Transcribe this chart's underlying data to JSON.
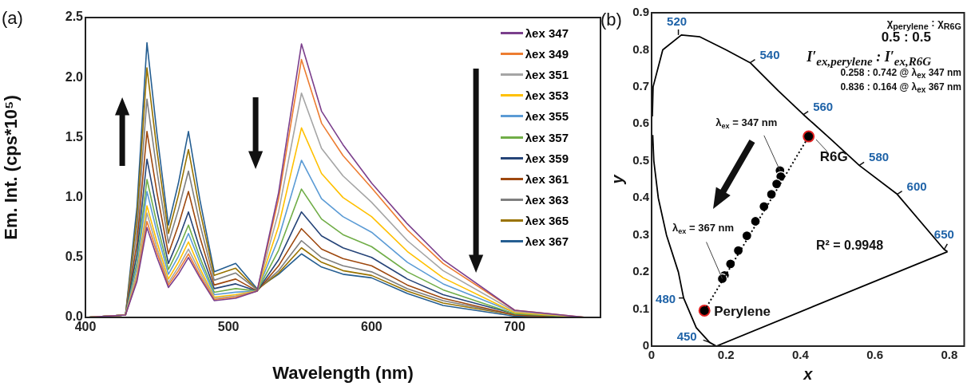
{
  "chart_data": [
    {
      "type": "line",
      "annotations": [
        "(a)"
      ],
      "xlabel": "Wavelength (nm)",
      "ylabel": "Em. Int. (cps*10⁵)",
      "x": [
        400,
        428,
        436,
        443,
        450,
        458,
        465,
        472,
        480,
        490,
        505,
        520,
        535,
        551,
        565,
        580,
        600,
        625,
        650,
        700,
        750
      ],
      "xlim": [
        400,
        760
      ],
      "xticks": [
        400,
        500,
        600,
        700
      ],
      "ylim": [
        0,
        2.5
      ],
      "yticks": [
        {
          "value": 0,
          "label": "0.0"
        },
        {
          "value": 0.5,
          "label": "0.5"
        },
        {
          "value": 1,
          "label": "1.0"
        },
        {
          "value": 1.5,
          "label": "1.5"
        },
        {
          "value": 2,
          "label": "2.0"
        },
        {
          "value": 2.5,
          "label": "2.5"
        }
      ],
      "grid": false,
      "legend": "top right",
      "marker": "none",
      "series": [
        {
          "name": "λex 347",
          "color": "#7b3f8c",
          "values": [
            0,
            0.02,
            0.3,
            0.75,
            0.5,
            0.25,
            0.36,
            0.5,
            0.33,
            0.14,
            0.16,
            0.22,
            1.04,
            2.28,
            1.72,
            1.44,
            1.12,
            0.78,
            0.48,
            0.06,
            0
          ]
        },
        {
          "name": "λex 349",
          "color": "#ed7d31",
          "values": [
            0,
            0.02,
            0.32,
            0.8,
            0.54,
            0.27,
            0.39,
            0.53,
            0.35,
            0.15,
            0.17,
            0.22,
            0.99,
            2.15,
            1.62,
            1.35,
            1.08,
            0.73,
            0.45,
            0.06,
            0
          ]
        },
        {
          "name": "λex 351",
          "color": "#a5a5a5",
          "values": [
            0,
            0.02,
            0.35,
            0.87,
            0.58,
            0.29,
            0.42,
            0.57,
            0.38,
            0.16,
            0.18,
            0.22,
            0.88,
            1.87,
            1.41,
            1.18,
            0.96,
            0.64,
            0.39,
            0.05,
            0
          ]
        },
        {
          "name": "λex 353",
          "color": "#ffc000",
          "values": [
            0,
            0.02,
            0.37,
            0.93,
            0.63,
            0.32,
            0.46,
            0.63,
            0.41,
            0.17,
            0.19,
            0.22,
            0.76,
            1.58,
            1.2,
            1.0,
            0.84,
            0.55,
            0.33,
            0.04,
            0
          ]
        },
        {
          "name": "λex 355",
          "color": "#5b9bd5",
          "values": [
            0,
            0.02,
            0.42,
            1.05,
            0.71,
            0.36,
            0.51,
            0.7,
            0.46,
            0.19,
            0.21,
            0.22,
            0.66,
            1.31,
            0.99,
            0.84,
            0.71,
            0.46,
            0.28,
            0.04,
            0
          ]
        },
        {
          "name": "λex 357",
          "color": "#70ad47",
          "values": [
            0,
            0.02,
            0.46,
            1.15,
            0.78,
            0.4,
            0.57,
            0.77,
            0.5,
            0.21,
            0.24,
            0.22,
            0.56,
            1.07,
            0.82,
            0.69,
            0.59,
            0.38,
            0.23,
            0.03,
            0
          ]
        },
        {
          "name": "λex 359",
          "color": "#264478",
          "values": [
            0,
            0.02,
            0.53,
            1.32,
            0.89,
            0.45,
            0.65,
            0.88,
            0.57,
            0.24,
            0.28,
            0.22,
            0.48,
            0.88,
            0.68,
            0.58,
            0.5,
            0.32,
            0.19,
            0.03,
            0
          ]
        },
        {
          "name": "λex 361",
          "color": "#9e480e",
          "values": [
            0,
            0.02,
            0.62,
            1.55,
            1.04,
            0.53,
            0.77,
            1.05,
            0.67,
            0.27,
            0.32,
            0.22,
            0.43,
            0.74,
            0.57,
            0.49,
            0.43,
            0.27,
            0.16,
            0.02,
            0
          ]
        },
        {
          "name": "λex 363",
          "color": "#7f7f7f",
          "values": [
            0,
            0.02,
            0.73,
            1.82,
            1.22,
            0.62,
            0.9,
            1.22,
            0.78,
            0.31,
            0.37,
            0.23,
            0.39,
            0.64,
            0.5,
            0.43,
            0.38,
            0.24,
            0.14,
            0.02,
            0
          ]
        },
        {
          "name": "λex 365",
          "color": "#997300",
          "values": [
            0,
            0.02,
            0.83,
            2.08,
            1.39,
            0.7,
            1.02,
            1.4,
            0.89,
            0.35,
            0.41,
            0.23,
            0.37,
            0.58,
            0.46,
            0.39,
            0.35,
            0.22,
            0.12,
            0.02,
            0
          ]
        },
        {
          "name": "λex 367",
          "color": "#255e91",
          "values": [
            0,
            0.02,
            0.92,
            2.29,
            1.53,
            0.77,
            1.12,
            1.55,
            0.98,
            0.38,
            0.45,
            0.24,
            0.36,
            0.53,
            0.42,
            0.36,
            0.33,
            0.2,
            0.1,
            0.01,
            0
          ]
        }
      ]
    },
    {
      "type": "scatter",
      "xlabel": "x",
      "ylabel": "y",
      "xlim": [
        0,
        0.84
      ],
      "xticks": [
        0,
        0.2,
        0.4,
        0.6,
        0.8
      ],
      "ylim": [
        0,
        0.9
      ],
      "yticks": [
        0,
        0.1,
        0.2,
        0.3,
        0.4,
        0.5,
        0.6,
        0.7,
        0.8,
        0.9
      ],
      "grid": false,
      "legend": false,
      "marker": "circle",
      "annotations": [
        "(b)",
        "χ$_{perylene}$ : χ$_{R6G}$",
        "0.5 : 0.5",
        "I′$_{ex,perylene}$ : I′$_{ex,R6G}$",
        "0.258 : 0.742 @ λ$_{ex}$ 347 nm",
        "0.836 : 0.164 @ λ$_{ex}$ 367 nm",
        "R² = 0.9948",
        {
          "text": "λ$_{ex}$ = 347 nm",
          "x": 0.345,
          "y": 0.474
        },
        {
          "text": "λ$_{ex}$ = 367 nm",
          "x": 0.19,
          "y": 0.182
        },
        {
          "text": "520",
          "x": 0.072,
          "y": 0.84
        },
        {
          "text": "540",
          "x": 0.265,
          "y": 0.765
        },
        {
          "text": "560",
          "x": 0.408,
          "y": 0.625
        },
        {
          "text": "580",
          "x": 0.558,
          "y": 0.488
        },
        {
          "text": "600",
          "x": 0.66,
          "y": 0.41
        },
        {
          "text": "650",
          "x": 0.786,
          "y": 0.261
        },
        {
          "text": "480",
          "x": 0.086,
          "y": 0.13
        },
        {
          "text": "450",
          "x": 0.156,
          "y": 0.01
        }
      ],
      "series": [
        {
          "type": "line",
          "marker": "none",
          "color": "#000000",
          "x": [
            0.003,
            0.006,
            0.018,
            0.04,
            0.072,
            0.086,
            0.12,
            0.156,
            0.174
          ],
          "values": [
            0.57,
            0.5,
            0.4,
            0.3,
            0.2,
            0.13,
            0.05,
            0.01,
            0
          ]
        },
        {
          "type": "line",
          "marker": "none",
          "color": "#000000",
          "x": [
            0.002,
            0.004,
            0.03,
            0.08,
            0.13,
            0.2,
            0.265,
            0.34,
            0.408,
            0.48,
            0.558,
            0.66,
            0.786,
            0.795
          ],
          "values": [
            0.62,
            0.7,
            0.8,
            0.84,
            0.835,
            0.8,
            0.765,
            0.69,
            0.625,
            0.56,
            0.488,
            0.41,
            0.261,
            0.255
          ]
        },
        {
          "type": "line",
          "marker": "none",
          "color": "#000000",
          "x": [
            0.174,
            0.795
          ],
          "values": [
            0,
            0.255
          ]
        },
        {
          "type": "line",
          "marker": "none",
          "line_style": "dotted",
          "color": "#000000",
          "x": [
            0.142,
            0.422
          ],
          "values": [
            0.096,
            0.566
          ]
        },
        {
          "color": "#000000",
          "x": [
            0.345,
            0.347,
            0.336,
            0.322,
            0.302,
            0.279,
            0.256,
            0.233,
            0.212,
            0.196,
            0.19
          ],
          "values": [
            0.474,
            0.458,
            0.438,
            0.41,
            0.377,
            0.337,
            0.298,
            0.258,
            0.222,
            0.191,
            0.182
          ]
        },
        {
          "name": "R6G",
          "color": "#000000",
          "x": [
            0.422
          ],
          "values": [
            0.566
          ]
        },
        {
          "name": "Perylene",
          "color": "#000000",
          "x": [
            0.142
          ],
          "values": [
            0.096
          ]
        }
      ]
    }
  ]
}
